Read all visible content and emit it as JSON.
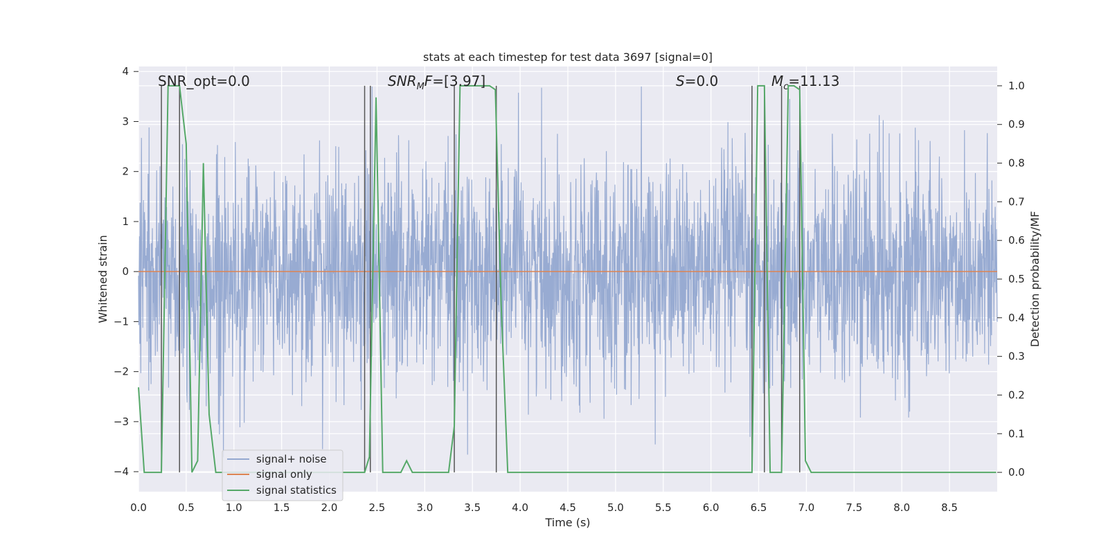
{
  "chart_data": {
    "type": "line",
    "title": "stats at each timestep for test data 3697 [signal=0]",
    "xlabel": "Time (s)",
    "ylabel_left": "Whitened strain",
    "ylabel_right": "Detection probability/MF",
    "xlim": [
      0,
      9.0
    ],
    "ylim_left": [
      -4.4,
      4.1
    ],
    "ylim_right": [
      -0.05,
      1.05
    ],
    "x_ticks": [
      "0.0",
      "0.5",
      "1.0",
      "1.5",
      "2.0",
      "2.5",
      "3.0",
      "3.5",
      "4.0",
      "4.5",
      "5.0",
      "5.5",
      "6.0",
      "6.5",
      "7.0",
      "7.5",
      "8.0",
      "8.5"
    ],
    "y_ticks_left": [
      "4",
      "3",
      "2",
      "1",
      "0",
      "−1",
      "−2",
      "−3",
      "−4"
    ],
    "y_ticks_right": [
      "1.0",
      "0.9",
      "0.8",
      "0.7",
      "0.6",
      "0.5",
      "0.4",
      "0.3",
      "0.2",
      "0.1",
      "0.0"
    ],
    "grid": true,
    "legend_position": "lower-left",
    "annotations": [
      {
        "plain": "SNR_opt=0.0"
      },
      {
        "italic": "SNR",
        "sub": "M",
        "italic2": "F",
        "plain": "=[3.97]"
      },
      {
        "italic": "S",
        "plain": "=0.0"
      },
      {
        "italic": "M",
        "sub": "c",
        "plain": "=11.13"
      }
    ],
    "series": [
      {
        "name": "signal+ noise",
        "axis": "left",
        "color": "#94a8d0",
        "description_values": "dense noise, approx range -4.1 to 3.7"
      },
      {
        "name": "signal only",
        "axis": "left",
        "color": "#dd8452",
        "x": [
          0,
          9.0
        ],
        "y": [
          0,
          0
        ]
      },
      {
        "name": "signal statistics",
        "axis": "right",
        "color": "#55a868",
        "x": [
          0.0,
          0.06,
          0.24,
          0.31,
          0.43,
          0.5,
          0.56,
          0.62,
          0.68,
          0.74,
          0.81,
          2.37,
          2.42,
          2.49,
          2.56,
          2.75,
          2.81,
          2.87,
          3.25,
          3.31,
          3.37,
          3.43,
          3.49,
          3.68,
          3.74,
          3.8,
          3.87,
          3.93,
          6.43,
          6.49,
          6.56,
          6.62,
          6.68,
          6.74,
          6.81,
          6.87,
          6.93,
          6.99,
          7.05,
          8.99
        ],
        "y": [
          0.22,
          0.0,
          0.0,
          1.0,
          1.0,
          0.85,
          0.0,
          0.03,
          0.8,
          0.15,
          0.0,
          0.0,
          0.04,
          0.97,
          0.0,
          0.0,
          0.03,
          0.0,
          0.0,
          0.12,
          1.0,
          1.0,
          1.0,
          1.0,
          0.99,
          0.44,
          0.0,
          0.0,
          0.0,
          1.0,
          1.0,
          0.0,
          0.0,
          0.0,
          1.0,
          1.0,
          0.99,
          0.03,
          0.0,
          0.0
        ]
      }
    ],
    "vlines": [
      0.24,
      0.43,
      2.37,
      2.43,
      3.31,
      3.75,
      6.43,
      6.56,
      6.74,
      6.93
    ]
  }
}
